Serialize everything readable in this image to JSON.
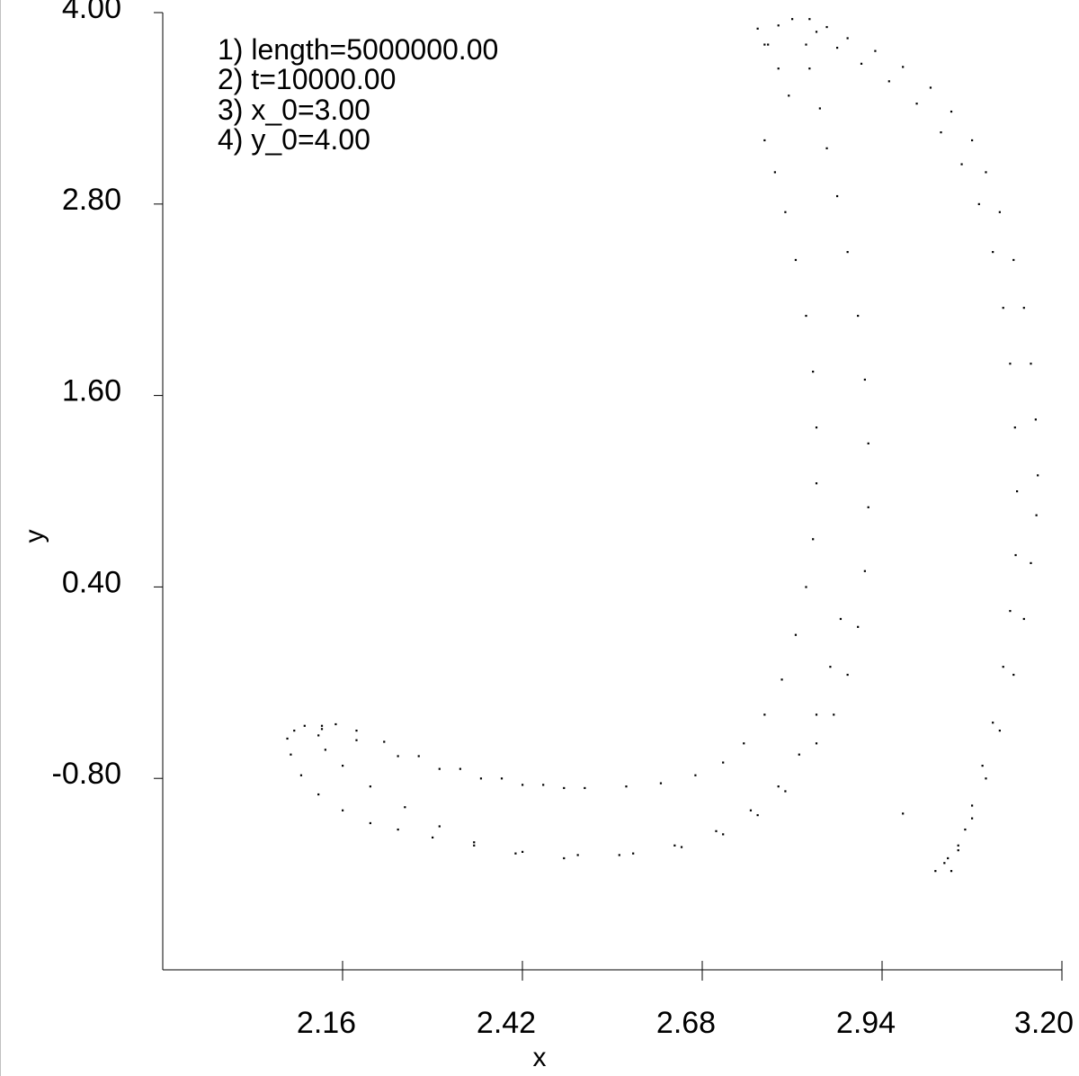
{
  "chart_data": {
    "type": "scatter",
    "title": "",
    "xlabel": "x",
    "ylabel": "y",
    "xlim": [
      1.9,
      3.2
    ],
    "ylim": [
      -2.0,
      4.0
    ],
    "xticks": [
      "2.16",
      "2.42",
      "2.68",
      "2.94",
      "3.20"
    ],
    "yticks": [
      "4.00",
      "2.80",
      "1.60",
      "0.40",
      "-0.80"
    ],
    "xtick_values": [
      2.16,
      2.42,
      2.68,
      2.94,
      3.2
    ],
    "ytick_values": [
      4.0,
      2.8,
      1.6,
      0.4,
      -0.8
    ],
    "annotations": [
      "1) length=5000000.00",
      "2) t=10000.00",
      "3) x_0=3.00",
      "4) y_0=4.00"
    ],
    "grid": false,
    "marker_color": "#000000",
    "series": [
      {
        "points": [
          [
            2.77,
            3.8
          ],
          [
            2.79,
            3.92
          ],
          [
            2.81,
            3.96
          ],
          [
            2.835,
            3.96
          ],
          [
            2.86,
            3.91
          ],
          [
            2.89,
            3.84
          ],
          [
            2.93,
            3.76
          ],
          [
            2.97,
            3.66
          ],
          [
            3.01,
            3.53
          ],
          [
            3.04,
            3.38
          ],
          [
            3.07,
            3.2
          ],
          [
            3.09,
            3.0
          ],
          [
            3.11,
            2.75
          ],
          [
            3.13,
            2.45
          ],
          [
            3.145,
            2.15
          ],
          [
            3.155,
            1.8
          ],
          [
            3.162,
            1.45
          ],
          [
            3.165,
            1.1
          ],
          [
            3.163,
            0.85
          ],
          [
            3.155,
            0.55
          ],
          [
            3.145,
            0.2
          ],
          [
            3.13,
            -0.15
          ],
          [
            3.11,
            -0.5
          ],
          [
            3.09,
            -0.8
          ],
          [
            3.07,
            -1.05
          ],
          [
            3.05,
            -1.22
          ],
          [
            3.03,
            -1.33
          ],
          [
            3.017,
            -1.38
          ],
          [
            2.76,
            3.9
          ],
          [
            2.775,
            3.8
          ],
          [
            2.79,
            3.65
          ],
          [
            2.805,
            3.48
          ],
          [
            2.835,
            3.65
          ],
          [
            2.85,
            3.4
          ],
          [
            2.86,
            3.15
          ],
          [
            2.875,
            2.85
          ],
          [
            2.89,
            2.5
          ],
          [
            2.905,
            2.1
          ],
          [
            2.915,
            1.7
          ],
          [
            2.92,
            1.3
          ],
          [
            2.92,
            0.9
          ],
          [
            2.915,
            0.5
          ],
          [
            2.905,
            0.15
          ],
          [
            2.89,
            -0.15
          ],
          [
            2.87,
            -0.4
          ],
          [
            2.845,
            -0.58
          ],
          [
            2.83,
            3.8
          ],
          [
            2.845,
            3.88
          ],
          [
            2.875,
            3.78
          ],
          [
            2.91,
            3.68
          ],
          [
            2.95,
            3.57
          ],
          [
            2.99,
            3.43
          ],
          [
            3.025,
            3.25
          ],
          [
            3.055,
            3.05
          ],
          [
            3.08,
            2.8
          ],
          [
            3.1,
            2.5
          ],
          [
            3.115,
            2.15
          ],
          [
            3.125,
            1.8
          ],
          [
            3.132,
            1.4
          ],
          [
            3.135,
            1.0
          ],
          [
            3.133,
            0.6
          ],
          [
            3.125,
            0.25
          ],
          [
            3.115,
            -0.1
          ],
          [
            3.1,
            -0.45
          ],
          [
            3.085,
            -0.72
          ],
          [
            3.07,
            -0.97
          ],
          [
            3.06,
            -1.12
          ],
          [
            3.05,
            -1.25
          ],
          [
            2.77,
            3.2
          ],
          [
            2.785,
            3.0
          ],
          [
            2.8,
            2.75
          ],
          [
            2.815,
            2.45
          ],
          [
            2.83,
            2.1
          ],
          [
            2.84,
            1.75
          ],
          [
            2.845,
            1.4
          ],
          [
            2.845,
            1.05
          ],
          [
            2.84,
            0.7
          ],
          [
            2.83,
            0.4
          ],
          [
            2.815,
            0.1
          ],
          [
            2.795,
            -0.18
          ],
          [
            2.77,
            -0.4
          ],
          [
            2.74,
            -0.58
          ],
          [
            2.71,
            -0.7
          ],
          [
            2.67,
            -0.78
          ],
          [
            2.62,
            -0.83
          ],
          [
            2.57,
            -0.85
          ],
          [
            2.51,
            -0.86
          ],
          [
            2.45,
            -0.84
          ],
          [
            2.39,
            -0.8
          ],
          [
            2.33,
            -0.74
          ],
          [
            2.27,
            -0.66
          ],
          [
            2.22,
            -0.57
          ],
          [
            2.18,
            -0.5
          ],
          [
            2.15,
            -0.46
          ],
          [
            2.13,
            -0.47
          ],
          [
            2.125,
            -0.53
          ],
          [
            2.135,
            -0.62
          ],
          [
            2.16,
            -0.72
          ],
          [
            2.2,
            -0.85
          ],
          [
            2.25,
            -0.98
          ],
          [
            2.3,
            -1.1
          ],
          [
            2.35,
            -1.2
          ],
          [
            2.41,
            -1.27
          ],
          [
            2.48,
            -1.3
          ],
          [
            2.56,
            -1.28
          ],
          [
            2.64,
            -1.22
          ],
          [
            2.7,
            -1.13
          ],
          [
            2.75,
            -1.0
          ],
          [
            2.79,
            -0.85
          ],
          [
            2.82,
            -0.65
          ],
          [
            2.845,
            -0.4
          ],
          [
            2.865,
            -0.1
          ],
          [
            2.88,
            0.2
          ],
          [
            2.08,
            -0.55
          ],
          [
            2.09,
            -0.5
          ],
          [
            2.105,
            -0.47
          ],
          [
            2.13,
            -0.49
          ],
          [
            2.18,
            -0.56
          ],
          [
            2.24,
            -0.66
          ],
          [
            2.3,
            -0.74
          ],
          [
            2.36,
            -0.8
          ],
          [
            2.42,
            -0.84
          ],
          [
            2.48,
            -0.86
          ],
          [
            2.085,
            -0.65
          ],
          [
            2.1,
            -0.78
          ],
          [
            2.125,
            -0.9
          ],
          [
            2.16,
            -1.0
          ],
          [
            2.2,
            -1.08
          ],
          [
            2.24,
            -1.12
          ],
          [
            2.29,
            -1.17
          ],
          [
            2.35,
            -1.22
          ],
          [
            2.42,
            -1.26
          ],
          [
            2.5,
            -1.28
          ],
          [
            2.58,
            -1.27
          ],
          [
            2.65,
            -1.23
          ],
          [
            2.71,
            -1.15
          ],
          [
            2.76,
            -1.03
          ],
          [
            2.8,
            -0.88
          ],
          [
            2.97,
            -1.02
          ],
          [
            3.04,
            -1.38
          ],
          [
            3.035,
            -1.3
          ]
        ]
      }
    ]
  }
}
